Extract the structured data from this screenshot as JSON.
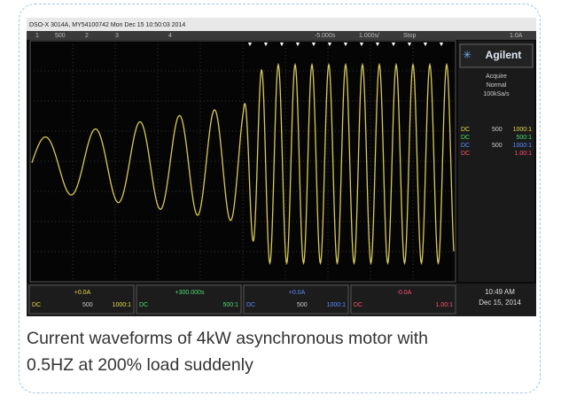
{
  "screen": {
    "header": "DSO-X 3014A, MY54100742 Mon Dec 15 10:50:03 2014",
    "top_bar": [
      "1",
      "500",
      "2",
      "3",
      "4",
      "-5.000s",
      "1.000s/",
      "Stop",
      "1.0A"
    ],
    "brand": "Agilent",
    "acquire": [
      "Acquire",
      "Normal",
      "100kSa/s"
    ],
    "channels": [
      {
        "coupling": "DC",
        "scale": "500",
        "probe": "1000:1"
      },
      {
        "coupling": "DC",
        "scale": "",
        "probe": "500:1"
      },
      {
        "coupling": "DC",
        "scale": "500",
        "probe": "1000:1"
      },
      {
        "coupling": "DC",
        "scale": "",
        "probe": "1.00:1"
      }
    ],
    "bottom": [
      {
        "offset": "+0.0A",
        "coupling": "DC",
        "scale": "500",
        "probe": "1000:1"
      },
      {
        "offset": "+300.000s",
        "coupling": "DC",
        "scale": "",
        "probe": "500:1"
      },
      {
        "offset": "+0.0A",
        "coupling": "DC",
        "scale": "500",
        "probe": "1000:1"
      },
      {
        "offset": "-0.0A",
        "coupling": "DC",
        "scale": "",
        "probe": "1.00:1"
      }
    ],
    "time": "10:49 AM",
    "date": "Dec 15, 2014"
  },
  "caption_lines": [
    "Current waveforms of 4kW asynchronous motor with",
    "0.5HZ at 200% load suddenly"
  ]
}
